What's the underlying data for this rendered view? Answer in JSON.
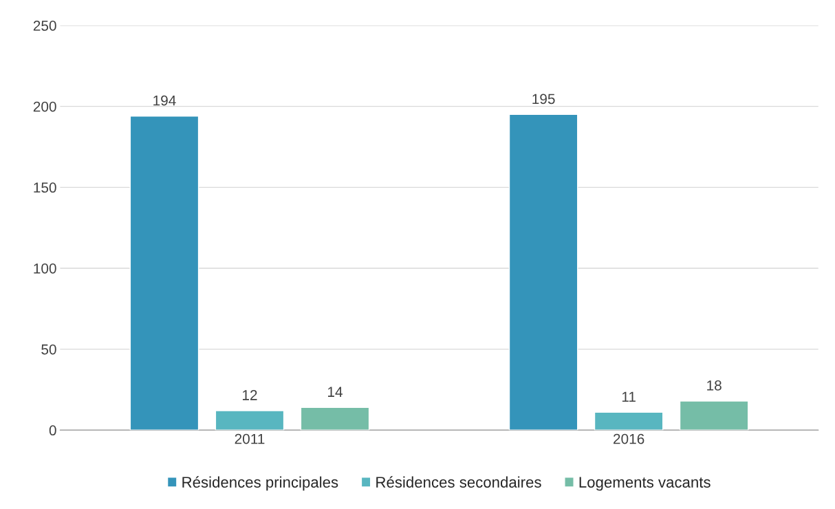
{
  "chart_data": {
    "type": "bar",
    "categories": [
      "2011",
      "2016"
    ],
    "series": [
      {
        "name": "Résidences principales",
        "color": "#3494ba",
        "values": [
          194,
          195
        ]
      },
      {
        "name": "Résidences secondaires",
        "color": "#58b6c0",
        "values": [
          12,
          11
        ]
      },
      {
        "name": "Logements vacants",
        "color": "#75bda7",
        "values": [
          14,
          18
        ]
      }
    ],
    "ylim": [
      0,
      250
    ],
    "yticks": [
      0,
      50,
      100,
      150,
      200,
      250
    ],
    "grid": "y",
    "legend": "bottom",
    "data_labels": true
  }
}
